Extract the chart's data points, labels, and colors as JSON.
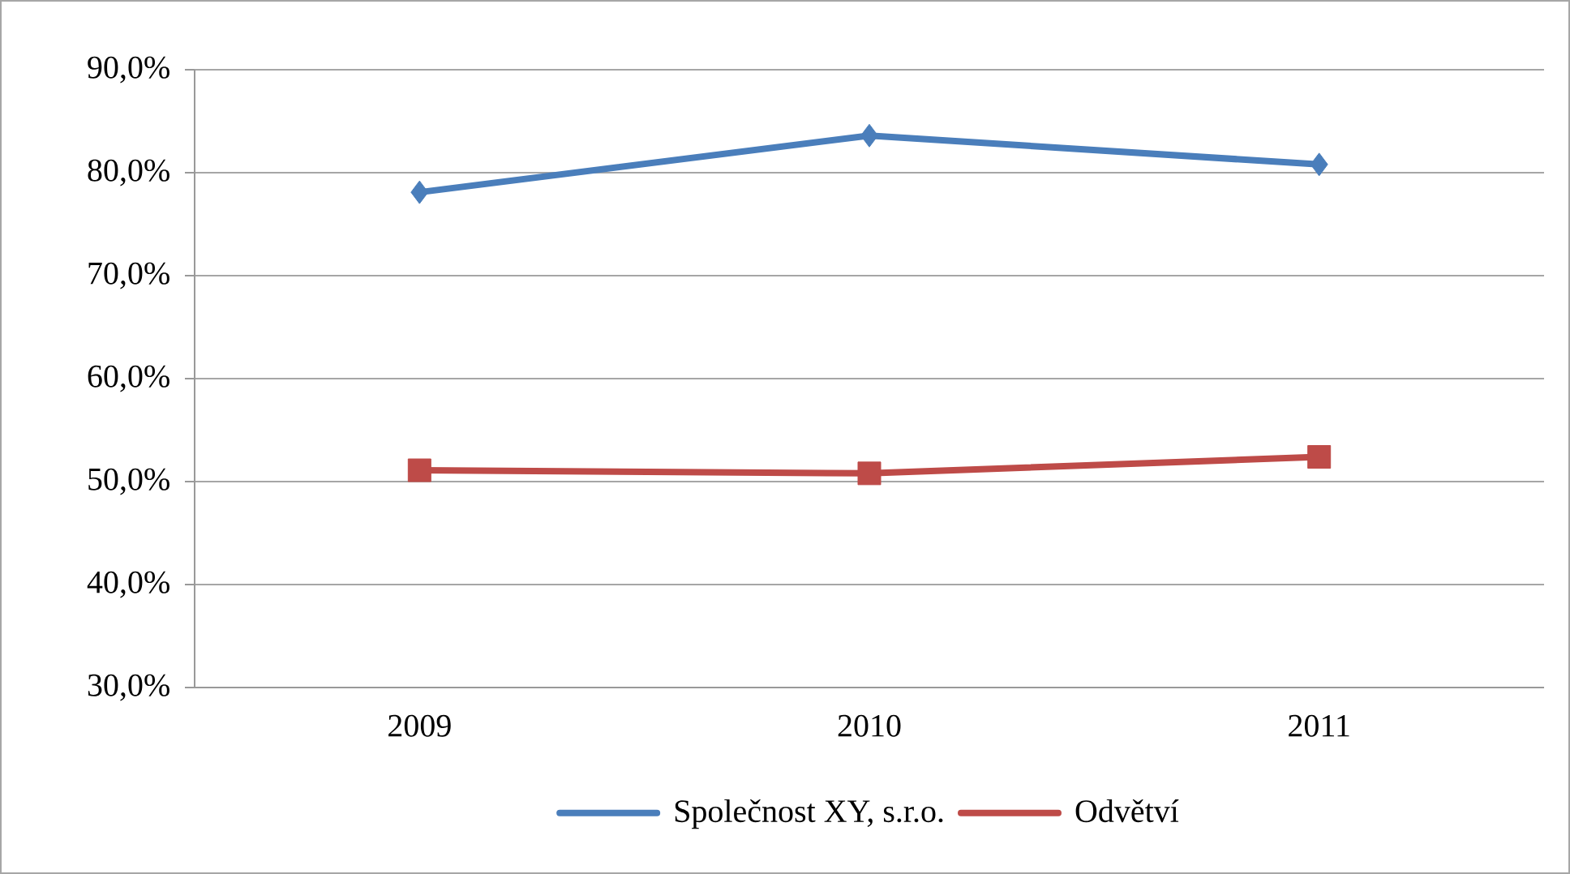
{
  "chart_data": {
    "type": "line",
    "categories": [
      "2009",
      "2010",
      "2011"
    ],
    "series": [
      {
        "name": "Společnost XY, s.r.o.",
        "color": "#4a7ebb",
        "marker": "diamond",
        "values": [
          78.1,
          83.6,
          80.8
        ]
      },
      {
        "name": "Odvětví",
        "color": "#be4b48",
        "marker": "square",
        "values": [
          51.1,
          50.8,
          52.4
        ]
      }
    ],
    "ylim": [
      30,
      90
    ],
    "yticks": [
      {
        "value": 30,
        "label": "30,0%"
      },
      {
        "value": 40,
        "label": "40,0%"
      },
      {
        "value": 50,
        "label": "50,0%"
      },
      {
        "value": 60,
        "label": "60,0%"
      },
      {
        "value": 70,
        "label": "70,0%"
      },
      {
        "value": 80,
        "label": "80,0%"
      },
      {
        "value": 90,
        "label": "90,0%"
      }
    ],
    "grid": "y",
    "legend": "bottom"
  }
}
